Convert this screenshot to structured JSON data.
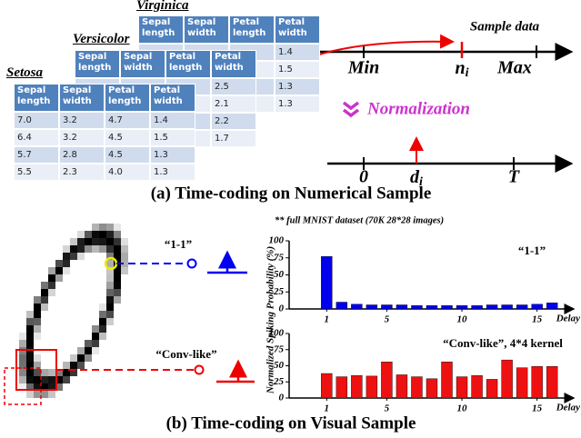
{
  "tables": [
    {
      "title": "Virginica",
      "headers": [
        "Sepal length",
        "Sepal width",
        "Petal length",
        "Petal width"
      ],
      "rows": [
        [
          "1.4"
        ],
        [
          "1.5"
        ],
        [
          "1.3"
        ],
        [
          "1.3"
        ]
      ]
    },
    {
      "title": "Versicolor",
      "headers": [
        "Sepal length",
        "Sepal width",
        "Petal length",
        "Petal width"
      ],
      "rows": [
        [
          "2.5"
        ],
        [
          "2.1"
        ],
        [
          "2.2"
        ],
        [
          "1.7"
        ]
      ]
    },
    {
      "title": "Setosa",
      "headers": [
        "Sepal length",
        "Sepal width",
        "Petal length",
        "Petal width"
      ],
      "rows": [
        [
          "7.0",
          "3.2",
          "4.7",
          "1.4"
        ],
        [
          "6.4",
          "3.2",
          "4.5",
          "1.5"
        ],
        [
          "5.7",
          "2.8",
          "4.5",
          "1.3"
        ],
        [
          "5.5",
          "2.3",
          "4.0",
          "1.3"
        ]
      ]
    }
  ],
  "timeline_top": {
    "sample_label": "Sample data",
    "min": "Min",
    "sample": {
      "main": "n",
      "sub": "i"
    },
    "max": "Max"
  },
  "normalization": "Normalization",
  "timeline_bottom": {
    "start": "0",
    "sample": {
      "main": "d",
      "sub": "i"
    },
    "end": "T"
  },
  "caption_a": "(a) Time-coding on Numerical Sample",
  "note": "** full MNIST dataset (70K 28*28 images)",
  "y_label": "Normalized Spiking Probability (%)",
  "digit_labels": [
    "“1-1”",
    "“Conv-like”"
  ],
  "caption_b": "(b) Time-coding on Visual Sample",
  "chart_data": [
    {
      "type": "bar",
      "annotation": "“1-1”",
      "x_label": "Delay",
      "color": "#0000ee",
      "x": [
        1,
        2,
        3,
        4,
        5,
        6,
        7,
        8,
        9,
        10,
        11,
        12,
        13,
        14,
        15,
        16
      ],
      "values": [
        77,
        10,
        7,
        6,
        6,
        6,
        5,
        5,
        5,
        5,
        5,
        6,
        6,
        6,
        7,
        9
      ],
      "xlim": [
        -1.5,
        17.2
      ],
      "xticks": [
        1,
        5,
        10,
        15
      ],
      "ylim": [
        0,
        100
      ],
      "yticks": [
        0,
        25,
        50,
        75,
        100
      ]
    },
    {
      "type": "bar",
      "annotation": "“Conv-like”, 4*4 kernel",
      "x_label": "Delay",
      "color": "#ee1111",
      "x": [
        1,
        2,
        3,
        4,
        5,
        6,
        7,
        8,
        9,
        10,
        11,
        12,
        13,
        14,
        15,
        16
      ],
      "values": [
        38,
        33,
        35,
        34,
        56,
        36,
        33,
        30,
        56,
        33,
        35,
        29,
        59,
        47,
        49,
        49
      ],
      "xlim": [
        -1.5,
        17.2
      ],
      "xticks": [
        1,
        5,
        10,
        15
      ],
      "ylim": [
        0,
        100
      ],
      "yticks": [
        0,
        25,
        50,
        75,
        100
      ]
    }
  ]
}
